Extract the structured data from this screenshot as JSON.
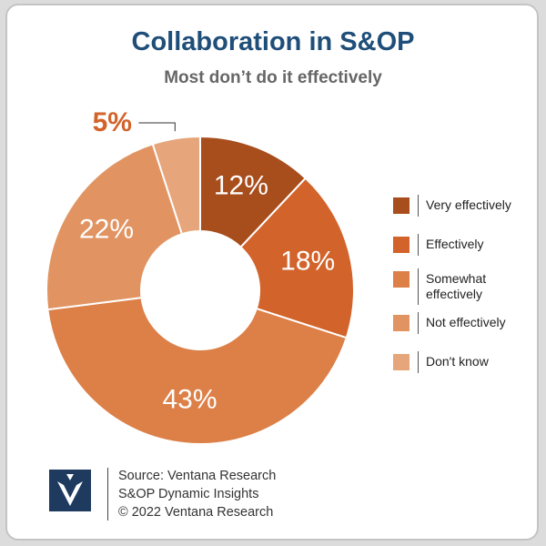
{
  "title": "Collaboration in S&OP",
  "subtitle": "Most don’t do it effectively",
  "chart_data": {
    "type": "pie",
    "style": "donut",
    "categories": [
      "Very effectively",
      "Effectively",
      "Somewhat effectively",
      "Not effectively",
      "Don't know"
    ],
    "values": [
      12,
      18,
      43,
      22,
      5
    ],
    "labels": [
      "12%",
      "18%",
      "43%",
      "22%",
      "5%"
    ],
    "colors": [
      "#a84d1c",
      "#d2632a",
      "#dc8048",
      "#e19462",
      "#e6a57a"
    ],
    "outside_label_color": "#d2632a",
    "legend_position": "right",
    "legend": [
      {
        "label": "Very effectively",
        "color": "#a84d1c"
      },
      {
        "label": "Effectively",
        "color": "#d2632a"
      },
      {
        "label": "Somewhat effectively",
        "color": "#dc8048"
      },
      {
        "label": "Not effectively",
        "color": "#e19462"
      },
      {
        "label": "Don't know",
        "color": "#e6a57a"
      }
    ]
  },
  "footer": {
    "line1": "Source: Ventana Research",
    "line2": "S&OP Dynamic Insights",
    "line3": "©  2022 Ventana Research"
  },
  "logo_icon": "ventana-v-logo"
}
